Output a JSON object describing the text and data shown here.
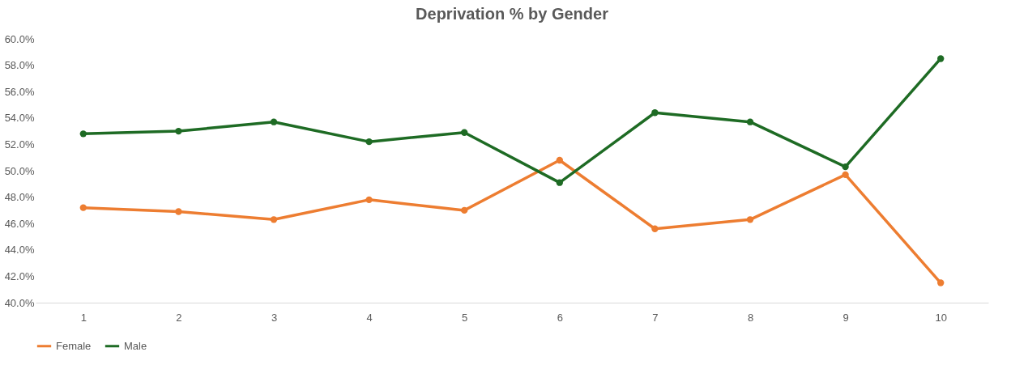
{
  "chart_data": {
    "type": "line",
    "title": "Deprivation % by Gender",
    "categories": [
      "1",
      "2",
      "3",
      "4",
      "5",
      "6",
      "7",
      "8",
      "9",
      "10"
    ],
    "series": [
      {
        "name": "Female",
        "color": "#ed7d31",
        "values": [
          47.2,
          46.9,
          46.3,
          47.8,
          47.0,
          50.8,
          45.6,
          46.3,
          49.7,
          41.5
        ]
      },
      {
        "name": "Male",
        "color": "#1e6b24",
        "values": [
          52.8,
          53.0,
          53.7,
          52.2,
          52.9,
          49.1,
          54.4,
          53.7,
          50.3,
          58.5
        ]
      }
    ],
    "ylim": [
      40,
      60
    ],
    "yticks": [
      {
        "value": 40,
        "label": "40.0%"
      },
      {
        "value": 42,
        "label": "42.0%"
      },
      {
        "value": 44,
        "label": "44.0%"
      },
      {
        "value": 46,
        "label": "46.0%"
      },
      {
        "value": 48,
        "label": "48.0%"
      },
      {
        "value": 50,
        "label": "50.0%"
      },
      {
        "value": 52,
        "label": "52.0%"
      },
      {
        "value": 54,
        "label": "54.0%"
      },
      {
        "value": 56,
        "label": "56.0%"
      },
      {
        "value": 58,
        "label": "58.0%"
      },
      {
        "value": 60,
        "label": "60.0%"
      }
    ],
    "grid": false,
    "legend": "bottom",
    "marker": "circle",
    "line_style": "solid"
  }
}
